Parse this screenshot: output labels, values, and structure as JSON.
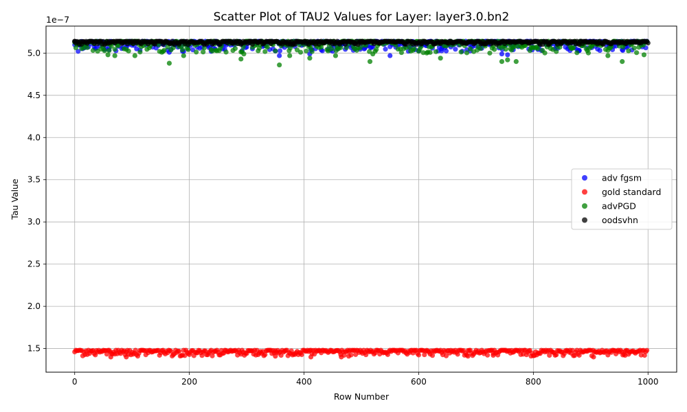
{
  "chart_data": {
    "type": "scatter",
    "title": "Scatter Plot of TAU2 Values for Layer: layer3.0.bn2",
    "xlabel": "Row Number",
    "ylabel": "Tau Value",
    "offset_text": "1e−7",
    "xlim": [
      -50,
      1050
    ],
    "ylim": [
      1.22,
      5.32
    ],
    "x_ticks": [
      0,
      200,
      400,
      600,
      800,
      1000
    ],
    "y_ticks": [
      1.5,
      2.0,
      2.5,
      3.0,
      3.5,
      4.0,
      4.5,
      5.0
    ],
    "x_tick_labels": [
      "0",
      "200",
      "400",
      "600",
      "800",
      "1000"
    ],
    "y_tick_labels": [
      "1.5",
      "2.0",
      "2.5",
      "3.0",
      "3.5",
      "4.0",
      "4.5",
      "5.0"
    ],
    "grid": true,
    "legend_position": "center-right",
    "n_points": 1000,
    "series": [
      {
        "name": "adv fgsm",
        "color": "#0000ff",
        "band": [
          5.02,
          5.14
        ],
        "values_scale": "1e-7",
        "outliers": [
          [
            60,
            5.04
          ],
          [
            108,
            5.05
          ],
          [
            165,
            5.01
          ],
          [
            190,
            5.02
          ],
          [
            245,
            5.05
          ],
          [
            258,
            5.05
          ],
          [
            357,
            4.97
          ],
          [
            410,
            4.99
          ],
          [
            505,
            5.05
          ],
          [
            550,
            4.97
          ],
          [
            640,
            5.05
          ],
          [
            745,
            4.99
          ],
          [
            755,
            4.98
          ],
          [
            765,
            5.04
          ],
          [
            860,
            5.05
          ],
          [
            880,
            5.03
          ],
          [
            955,
            5.04
          ]
        ]
      },
      {
        "name": "gold standard",
        "color": "#ff0000",
        "band": [
          1.41,
          1.48
        ],
        "values_scale": "1e-7",
        "outliers": [
          [
            63,
            1.4
          ],
          [
            90,
            1.4
          ],
          [
            350,
            1.41
          ],
          [
            412,
            1.4
          ],
          [
            465,
            1.4
          ],
          [
            478,
            1.41
          ],
          [
            686,
            1.41
          ],
          [
            730,
            1.42
          ],
          [
            905,
            1.4
          ],
          [
            960,
            1.42
          ]
        ]
      },
      {
        "name": "advPGD",
        "color": "#008000",
        "band": [
          5.0,
          5.14
        ],
        "values_scale": "1e-7",
        "outliers": [
          [
            58,
            4.98
          ],
          [
            70,
            4.97
          ],
          [
            105,
            4.97
          ],
          [
            165,
            4.88
          ],
          [
            190,
            4.97
          ],
          [
            290,
            4.93
          ],
          [
            295,
            4.99
          ],
          [
            357,
            4.86
          ],
          [
            375,
            4.97
          ],
          [
            410,
            4.94
          ],
          [
            455,
            4.97
          ],
          [
            515,
            4.9
          ],
          [
            520,
            4.99
          ],
          [
            638,
            4.94
          ],
          [
            745,
            4.9
          ],
          [
            755,
            4.92
          ],
          [
            770,
            4.9
          ],
          [
            930,
            4.97
          ],
          [
            955,
            4.9
          ],
          [
            993,
            4.98
          ]
        ]
      },
      {
        "name": "oodsvhn",
        "color": "#000000",
        "band": [
          5.1,
          5.14
        ],
        "values_scale": "1e-7",
        "outliers": [
          [
            0,
            5.14
          ],
          [
            500,
            5.12
          ],
          [
            1000,
            5.12
          ]
        ]
      }
    ]
  }
}
